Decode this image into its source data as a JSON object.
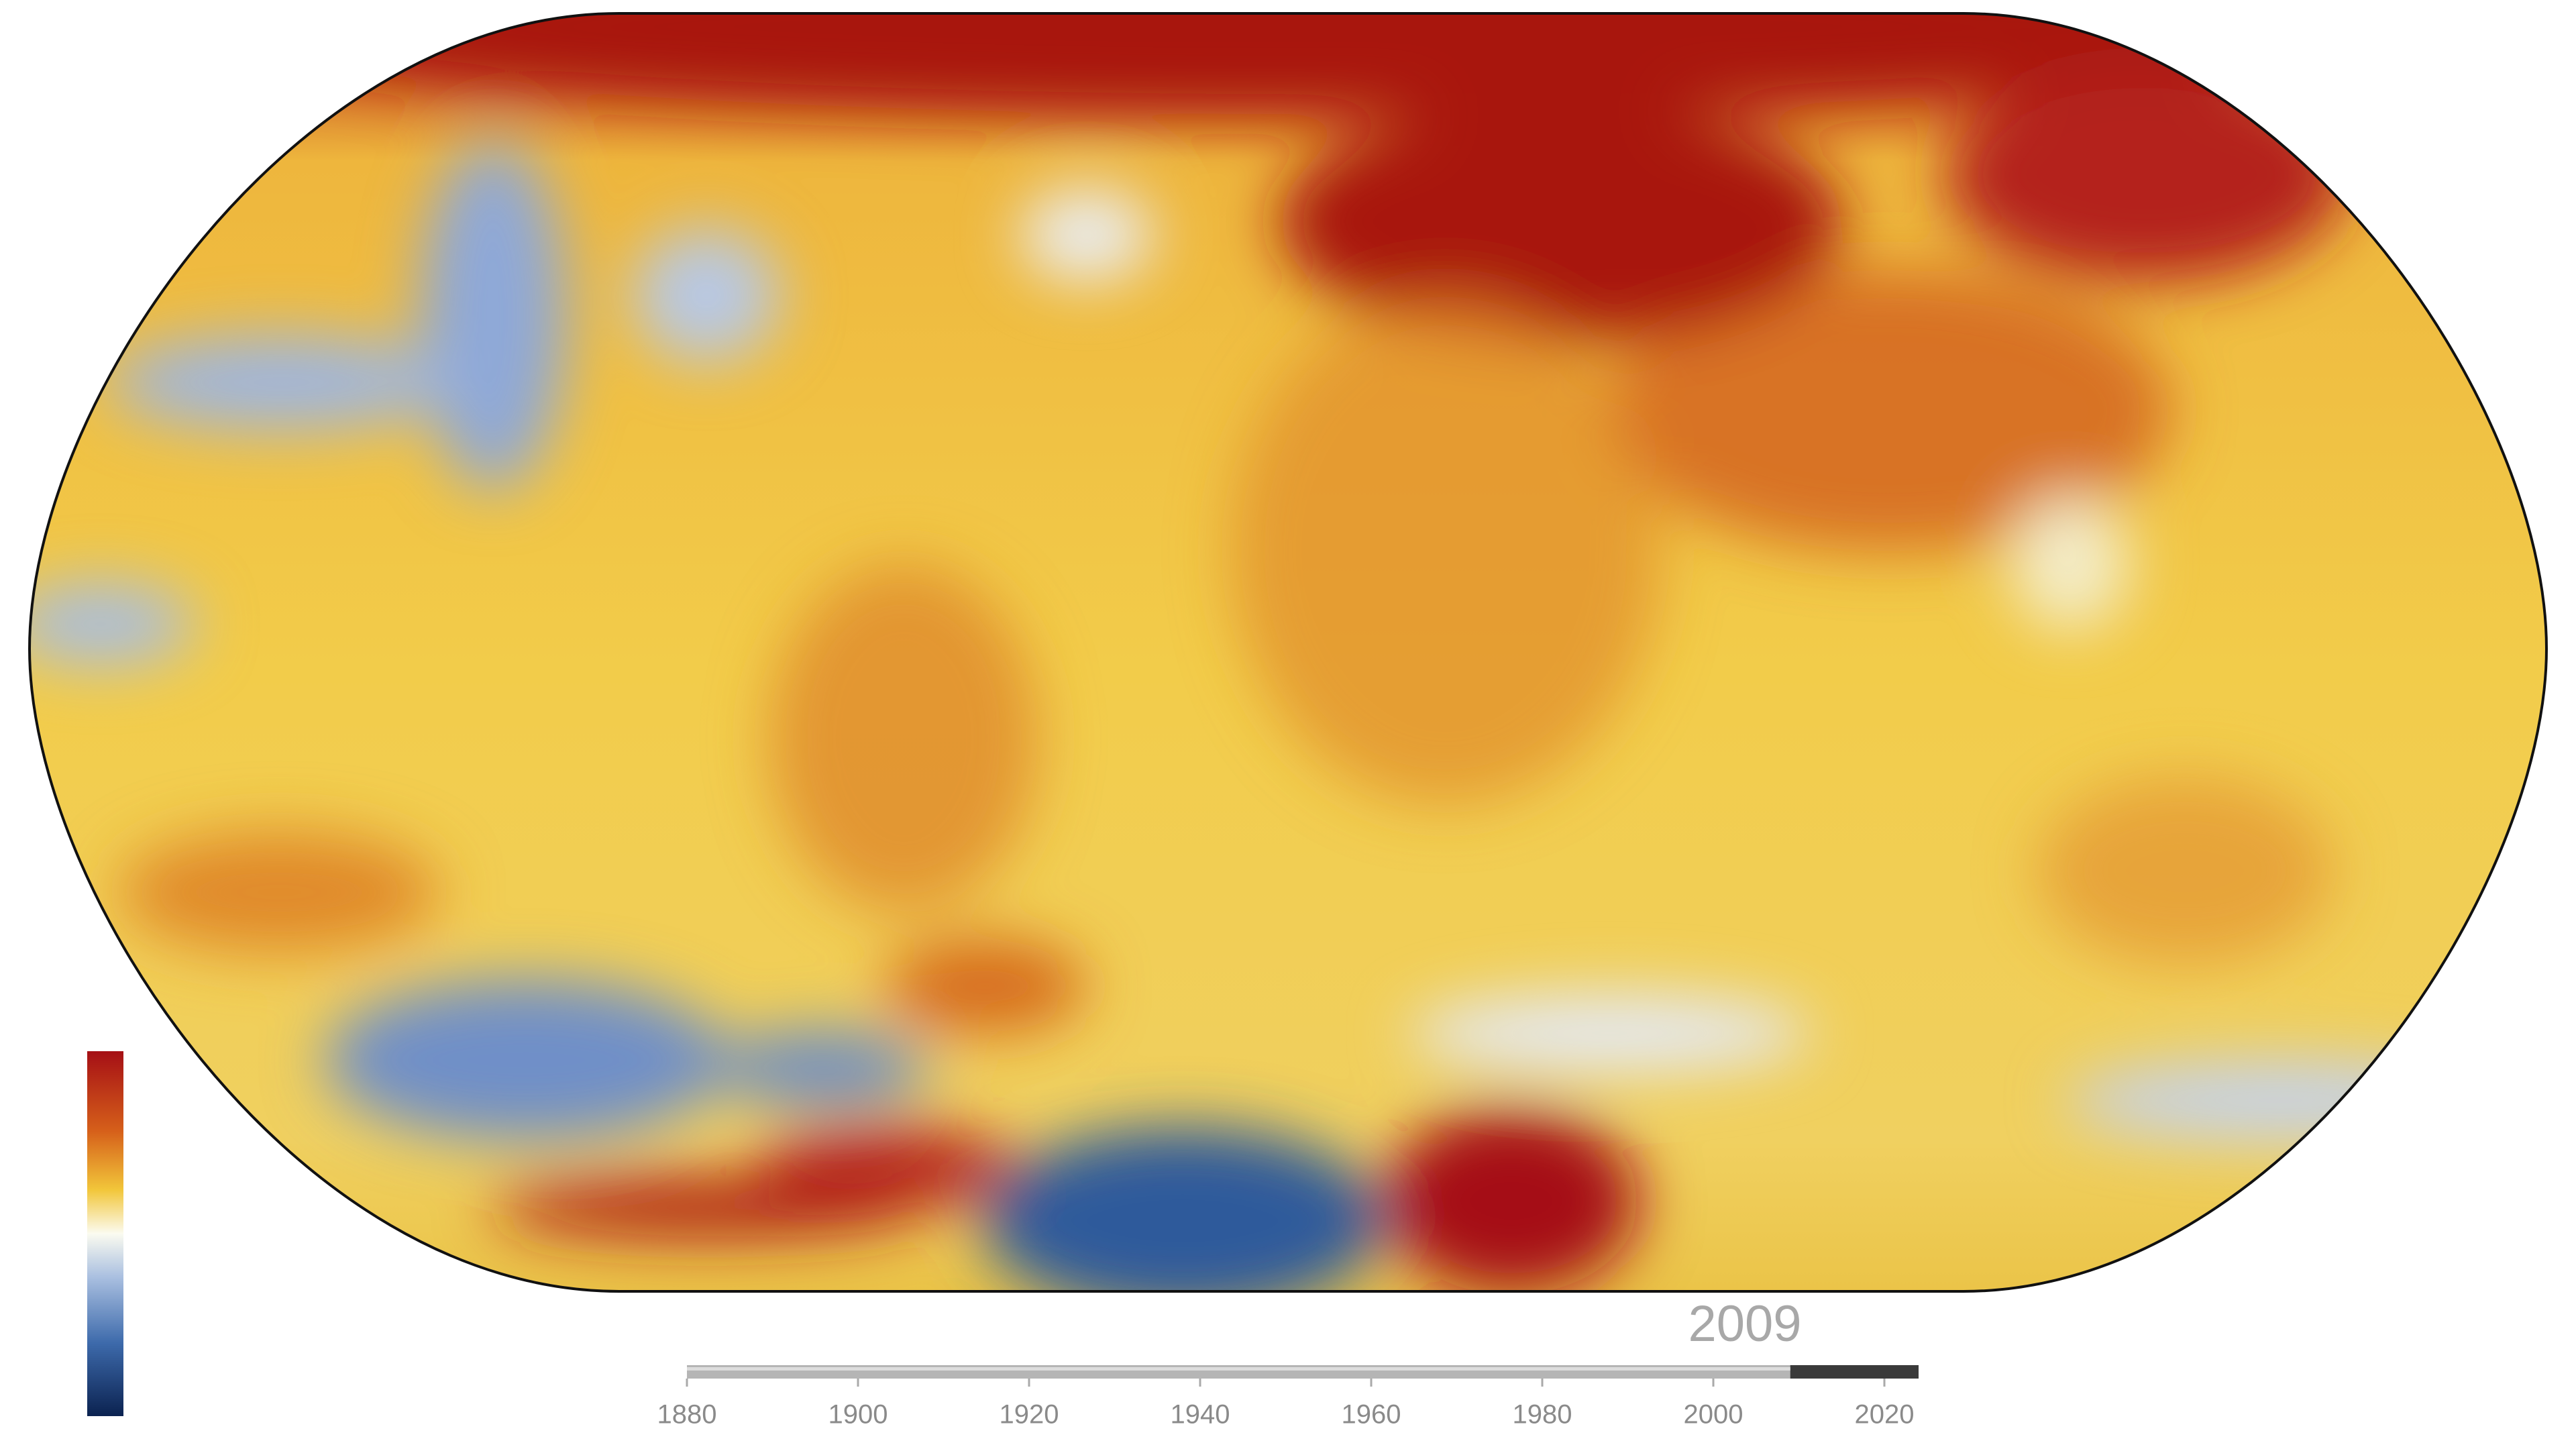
{
  "timeline": {
    "year": 2009,
    "xlim": [
      1880,
      2024
    ],
    "xticks": [
      1880,
      1900,
      1920,
      1940,
      1960,
      1980,
      2000,
      2020
    ]
  }
}
